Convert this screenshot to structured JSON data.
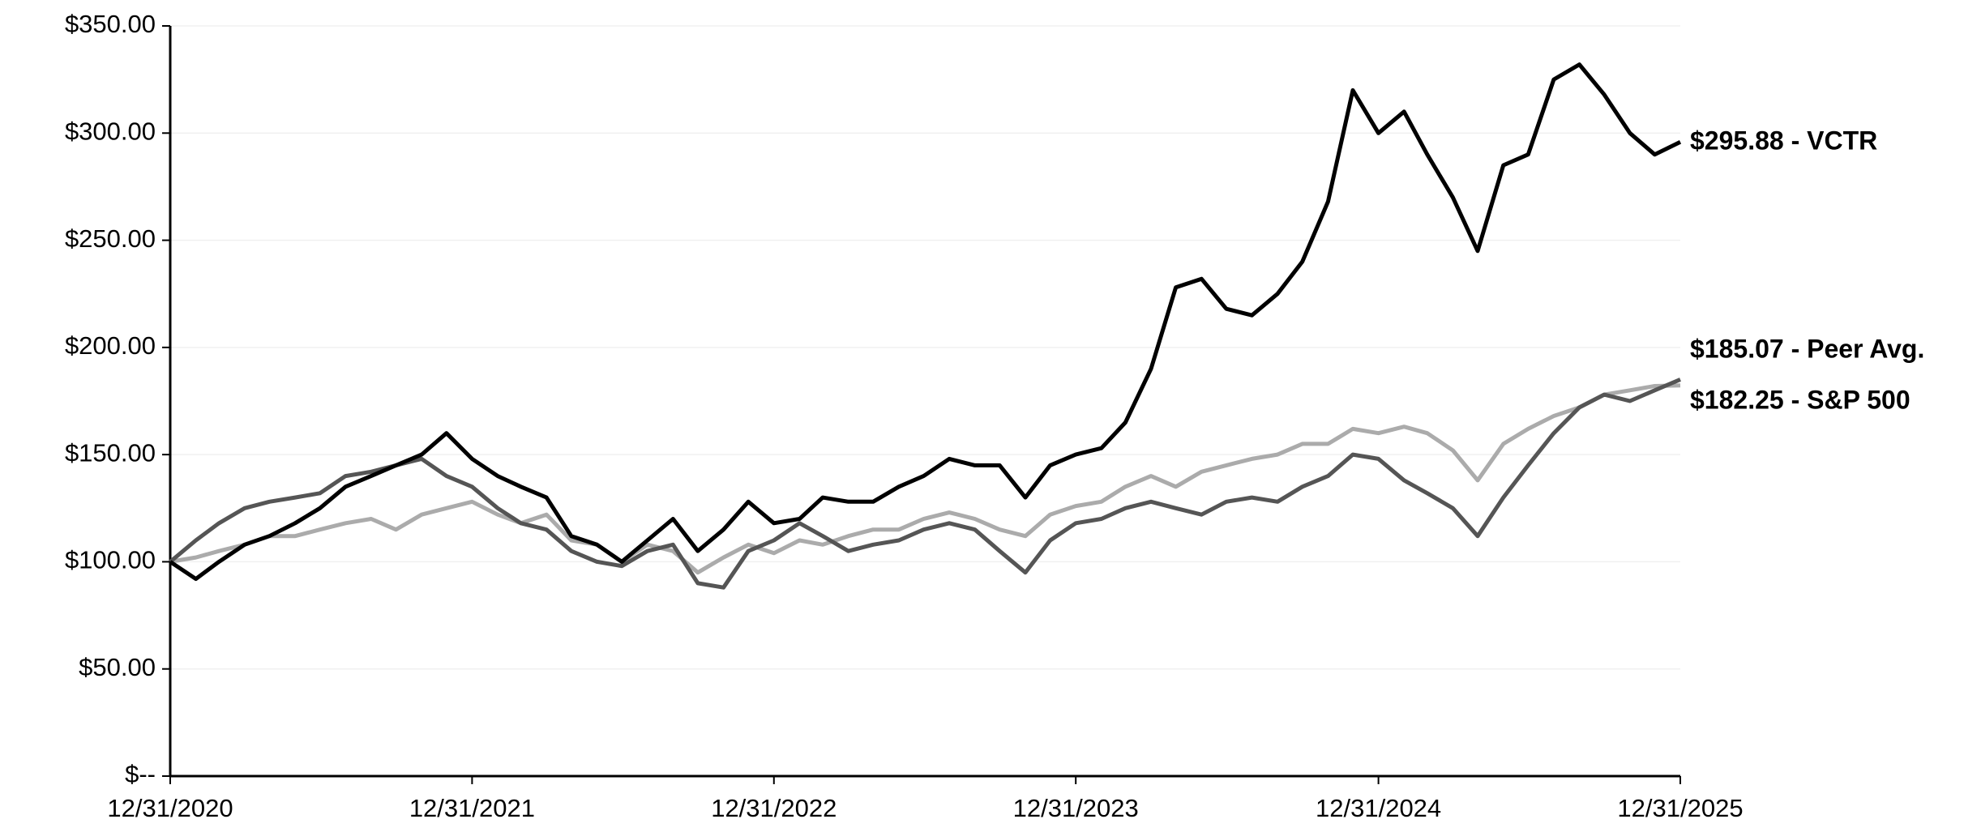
{
  "chart_data": {
    "type": "line",
    "x": [
      "12/31/2020",
      "01/31/2021",
      "02/28/2021",
      "03/31/2021",
      "04/30/2021",
      "05/31/2021",
      "06/30/2021",
      "07/31/2021",
      "08/31/2021",
      "09/30/2021",
      "10/31/2021",
      "11/30/2021",
      "12/31/2021",
      "01/31/2022",
      "02/28/2022",
      "03/31/2022",
      "04/30/2022",
      "05/31/2022",
      "06/30/2022",
      "07/31/2022",
      "08/31/2022",
      "09/30/2022",
      "10/31/2022",
      "11/30/2022",
      "12/31/2022",
      "01/31/2023",
      "02/28/2023",
      "03/31/2023",
      "04/30/2023",
      "05/31/2023",
      "06/30/2023",
      "07/31/2023",
      "08/31/2023",
      "09/30/2023",
      "10/31/2023",
      "11/30/2023",
      "12/31/2023",
      "01/31/2024",
      "02/29/2024",
      "03/31/2024",
      "04/30/2024",
      "05/31/2024",
      "06/30/2024",
      "07/31/2024",
      "08/31/2024",
      "09/30/2024",
      "10/31/2024",
      "11/30/2024",
      "12/31/2024",
      "01/31/2025",
      "02/28/2025",
      "03/31/2025",
      "04/30/2025",
      "05/31/2025",
      "06/30/2025",
      "07/31/2025",
      "08/31/2025",
      "09/30/2025",
      "10/31/2025",
      "11/30/2025",
      "12/31/2025"
    ],
    "series": [
      {
        "name": "VCTR",
        "color": "#000000",
        "end_label": "$295.88 - VCTR",
        "values": [
          100,
          92,
          100,
          108,
          112,
          118,
          125,
          135,
          140,
          145,
          150,
          160,
          148,
          140,
          135,
          130,
          112,
          108,
          100,
          110,
          120,
          105,
          115,
          128,
          118,
          120,
          130,
          128,
          128,
          135,
          140,
          148,
          145,
          145,
          130,
          145,
          150,
          153,
          165,
          190,
          228,
          232,
          218,
          215,
          225,
          240,
          268,
          320,
          300,
          310,
          290,
          270,
          245,
          285,
          290,
          325,
          332,
          318,
          300,
          290,
          295.88
        ]
      },
      {
        "name": "Peer Avg.",
        "color": "#555555",
        "end_label": "$185.07 - Peer Avg.",
        "values": [
          100,
          110,
          118,
          125,
          128,
          130,
          132,
          140,
          142,
          145,
          148,
          140,
          135,
          125,
          118,
          115,
          105,
          100,
          98,
          105,
          108,
          90,
          88,
          105,
          110,
          118,
          112,
          105,
          108,
          110,
          115,
          118,
          115,
          105,
          95,
          110,
          118,
          120,
          125,
          128,
          125,
          122,
          128,
          130,
          128,
          135,
          140,
          150,
          148,
          138,
          132,
          125,
          112,
          130,
          145,
          160,
          172,
          178,
          175,
          180,
          185.07
        ]
      },
      {
        "name": "S&P 500",
        "color": "#ababab",
        "end_label": "$182.25 - S&P 500",
        "values": [
          100,
          102,
          105,
          108,
          112,
          112,
          115,
          118,
          120,
          115,
          122,
          125,
          128,
          122,
          118,
          122,
          110,
          108,
          100,
          108,
          105,
          95,
          102,
          108,
          104,
          110,
          108,
          112,
          115,
          115,
          120,
          123,
          120,
          115,
          112,
          122,
          126,
          128,
          135,
          140,
          135,
          142,
          145,
          148,
          150,
          155,
          155,
          162,
          160,
          163,
          160,
          152,
          138,
          155,
          162,
          168,
          172,
          178,
          180,
          182,
          182.25
        ]
      }
    ],
    "xlim": [
      "12/31/2020",
      "12/31/2025"
    ],
    "xticks": [
      "12/31/2020",
      "12/31/2021",
      "12/31/2022",
      "12/31/2023",
      "12/31/2024",
      "12/31/2025"
    ],
    "ylim": [
      0,
      350
    ],
    "yticks": [
      {
        "value": 0,
        "label": "$--"
      },
      {
        "value": 50,
        "label": "$50.00"
      },
      {
        "value": 100,
        "label": "$100.00"
      },
      {
        "value": 150,
        "label": "$150.00"
      },
      {
        "value": 200,
        "label": "$200.00"
      },
      {
        "value": 250,
        "label": "$250.00"
      },
      {
        "value": 300,
        "label": "$300.00"
      },
      {
        "value": 350,
        "label": "$350.00"
      }
    ],
    "grid": true
  }
}
